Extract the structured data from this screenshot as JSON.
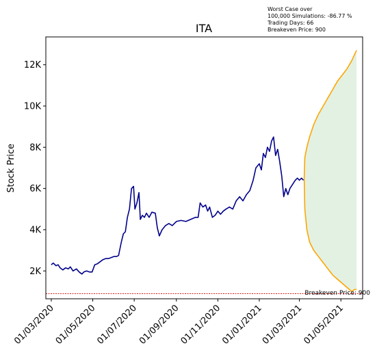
{
  "annotation": {
    "lines": [
      "Worst Case over",
      "100,000 Simulations: -86.77 %",
      "Trading Days: 66",
      "Breakeven Price: 900"
    ]
  },
  "breakeven_label": "Breakeven Price: 900",
  "colors": {
    "history": "#00008b",
    "bounds": "#ffa500",
    "band_fill": "#d9ecd9",
    "breakeven": "#cc0000"
  },
  "chart_data": {
    "type": "line",
    "title": "ITA",
    "xlabel": "",
    "ylabel": "Stock Price",
    "x_tick_labels": [
      "01/03/2020",
      "01/05/2020",
      "01/07/2020",
      "01/09/2020",
      "01/11/2020",
      "01/01/2021",
      "01/03/2021",
      "01/05/2021"
    ],
    "y_tick_labels": [
      "2K",
      "4K",
      "6K",
      "8K",
      "10K",
      "12K"
    ],
    "y_ticks": [
      2000,
      4000,
      6000,
      8000,
      10000,
      12000
    ],
    "xlim": [
      "2020-02-22",
      "2021-06-02"
    ],
    "ylim": [
      650,
      13350
    ],
    "grid": false,
    "breakeven": 900,
    "series": [
      {
        "role": "history",
        "points": [
          [
            "2020-03-01",
            2300
          ],
          [
            "2020-03-04",
            2380
          ],
          [
            "2020-03-08",
            2250
          ],
          [
            "2020-03-11",
            2300
          ],
          [
            "2020-03-14",
            2150
          ],
          [
            "2020-03-18",
            2050
          ],
          [
            "2020-03-22",
            2150
          ],
          [
            "2020-03-26",
            2100
          ],
          [
            "2020-03-29",
            2200
          ],
          [
            "2020-04-02",
            2000
          ],
          [
            "2020-04-07",
            2100
          ],
          [
            "2020-04-11",
            1950
          ],
          [
            "2020-04-15",
            1850
          ],
          [
            "2020-04-18",
            1950
          ],
          [
            "2020-04-22",
            2000
          ],
          [
            "2020-04-26",
            1950
          ],
          [
            "2020-04-30",
            1950
          ],
          [
            "2020-05-04",
            2300
          ],
          [
            "2020-05-08",
            2350
          ],
          [
            "2020-05-12",
            2450
          ],
          [
            "2020-05-16",
            2550
          ],
          [
            "2020-05-20",
            2600
          ],
          [
            "2020-05-24",
            2600
          ],
          [
            "2020-05-28",
            2650
          ],
          [
            "2020-06-01",
            2700
          ],
          [
            "2020-06-05",
            2700
          ],
          [
            "2020-06-08",
            2750
          ],
          [
            "2020-06-12",
            3400
          ],
          [
            "2020-06-15",
            3800
          ],
          [
            "2020-06-18",
            3900
          ],
          [
            "2020-06-21",
            4600
          ],
          [
            "2020-06-24",
            5000
          ],
          [
            "2020-06-27",
            6000
          ],
          [
            "2020-06-30",
            6100
          ],
          [
            "2020-07-02",
            5000
          ],
          [
            "2020-07-05",
            5300
          ],
          [
            "2020-07-08",
            5800
          ],
          [
            "2020-07-10",
            4500
          ],
          [
            "2020-07-13",
            4700
          ],
          [
            "2020-07-16",
            4600
          ],
          [
            "2020-07-19",
            4800
          ],
          [
            "2020-07-23",
            4600
          ],
          [
            "2020-07-27",
            4850
          ],
          [
            "2020-08-01",
            4800
          ],
          [
            "2020-08-04",
            4100
          ],
          [
            "2020-08-07",
            3700
          ],
          [
            "2020-08-11",
            4000
          ],
          [
            "2020-08-16",
            4200
          ],
          [
            "2020-08-21",
            4300
          ],
          [
            "2020-08-26",
            4200
          ],
          [
            "2020-09-01",
            4400
          ],
          [
            "2020-09-08",
            4450
          ],
          [
            "2020-09-15",
            4400
          ],
          [
            "2020-09-22",
            4500
          ],
          [
            "2020-09-29",
            4600
          ],
          [
            "2020-10-03",
            4600
          ],
          [
            "2020-10-06",
            5300
          ],
          [
            "2020-10-10",
            5100
          ],
          [
            "2020-10-14",
            5200
          ],
          [
            "2020-10-17",
            4900
          ],
          [
            "2020-10-20",
            5100
          ],
          [
            "2020-10-24",
            4600
          ],
          [
            "2020-10-28",
            4700
          ],
          [
            "2020-11-01",
            4900
          ],
          [
            "2020-11-05",
            4750
          ],
          [
            "2020-11-09",
            4900
          ],
          [
            "2020-11-13",
            5000
          ],
          [
            "2020-11-18",
            5100
          ],
          [
            "2020-11-23",
            5000
          ],
          [
            "2020-11-28",
            5400
          ],
          [
            "2020-12-03",
            5600
          ],
          [
            "2020-12-08",
            5400
          ],
          [
            "2020-12-13",
            5700
          ],
          [
            "2020-12-18",
            5900
          ],
          [
            "2020-12-23",
            6400
          ],
          [
            "2020-12-27",
            7000
          ],
          [
            "2021-01-01",
            7200
          ],
          [
            "2021-01-04",
            6900
          ],
          [
            "2021-01-07",
            7700
          ],
          [
            "2021-01-10",
            7500
          ],
          [
            "2021-01-13",
            8000
          ],
          [
            "2021-01-16",
            7800
          ],
          [
            "2021-01-19",
            8300
          ],
          [
            "2021-01-22",
            8500
          ],
          [
            "2021-01-25",
            7600
          ],
          [
            "2021-01-28",
            7900
          ],
          [
            "2021-01-31",
            7300
          ],
          [
            "2021-02-03",
            6600
          ],
          [
            "2021-02-06",
            5600
          ],
          [
            "2021-02-09",
            6000
          ],
          [
            "2021-02-12",
            5700
          ],
          [
            "2021-02-15",
            6000
          ],
          [
            "2021-02-19",
            6200
          ],
          [
            "2021-02-23",
            6400
          ],
          [
            "2021-02-26",
            6500
          ],
          [
            "2021-03-01",
            6400
          ],
          [
            "2021-03-04",
            6500
          ],
          [
            "2021-03-07",
            6400
          ]
        ]
      },
      {
        "role": "upper-bound",
        "points": [
          [
            "2021-03-08",
            6500
          ],
          [
            "2021-03-09",
            7500
          ],
          [
            "2021-03-12",
            8000
          ],
          [
            "2021-03-16",
            8500
          ],
          [
            "2021-03-22",
            9100
          ],
          [
            "2021-03-29",
            9600
          ],
          [
            "2021-04-05",
            10000
          ],
          [
            "2021-04-12",
            10400
          ],
          [
            "2021-04-19",
            10800
          ],
          [
            "2021-04-26",
            11200
          ],
          [
            "2021-05-03",
            11500
          ],
          [
            "2021-05-10",
            11800
          ],
          [
            "2021-05-17",
            12200
          ],
          [
            "2021-05-24",
            12700
          ]
        ]
      },
      {
        "role": "lower-bound",
        "points": [
          [
            "2021-03-08",
            6500
          ],
          [
            "2021-03-09",
            5000
          ],
          [
            "2021-03-12",
            4000
          ],
          [
            "2021-03-16",
            3400
          ],
          [
            "2021-03-22",
            3000
          ],
          [
            "2021-03-29",
            2700
          ],
          [
            "2021-04-05",
            2400
          ],
          [
            "2021-04-12",
            2100
          ],
          [
            "2021-04-19",
            1800
          ],
          [
            "2021-04-26",
            1600
          ],
          [
            "2021-05-03",
            1400
          ],
          [
            "2021-05-10",
            1200
          ],
          [
            "2021-05-17",
            1000
          ],
          [
            "2021-05-21",
            1100
          ],
          [
            "2021-05-24",
            1100
          ]
        ]
      }
    ]
  }
}
